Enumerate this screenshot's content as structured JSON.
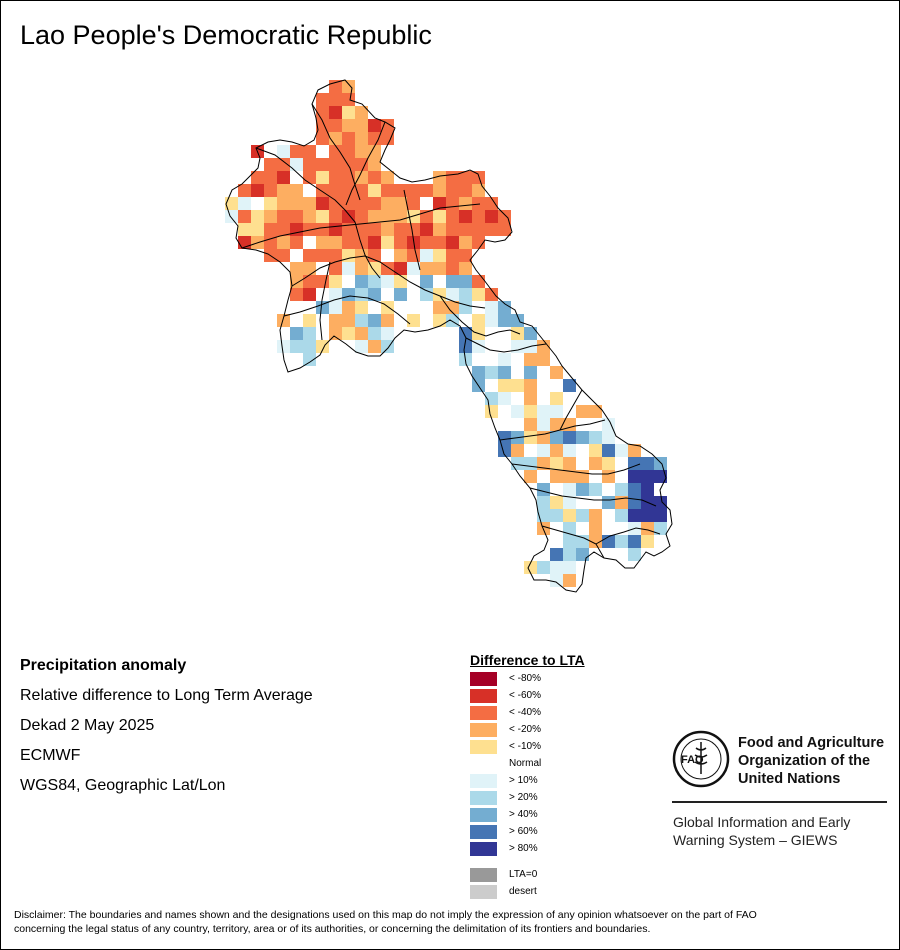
{
  "title": "Lao People's Democratic Republic",
  "info": {
    "heading": "Precipitation anomaly",
    "line1": "Relative difference to Long Term Average",
    "line2": "Dekad 2 May 2025",
    "line3": "ECMWF",
    "line4": "WGS84, Geographic Lat/Lon"
  },
  "legend": {
    "title": "Difference to LTA",
    "items": [
      {
        "label": "< -80%",
        "color": "#a50026"
      },
      {
        "label": "< -60%",
        "color": "#d73027"
      },
      {
        "label": "< -40%",
        "color": "#f46d43"
      },
      {
        "label": "< -20%",
        "color": "#fdae61"
      },
      {
        "label": "< -10%",
        "color": "#fee090"
      },
      {
        "label": "Normal",
        "color": "#ffffff"
      },
      {
        "label": "> 10%",
        "color": "#e0f3f8"
      },
      {
        "label": "> 20%",
        "color": "#abd9e9"
      },
      {
        "label": "> 40%",
        "color": "#74add1"
      },
      {
        "label": "> 60%",
        "color": "#4575b4"
      },
      {
        "label": "> 80%",
        "color": "#313695"
      }
    ],
    "extra": [
      {
        "label": "LTA=0",
        "color": "#999999"
      },
      {
        "label": "desert",
        "color": "#cccccc"
      }
    ]
  },
  "org": {
    "logo_icon": "fao-logo-icon",
    "line1": "Food and Agriculture",
    "line2": "Organization of the",
    "line3": "United Nations",
    "logo_text": "FAO",
    "logo_motto": "FIAT PANIS"
  },
  "giews": {
    "line1": "Global Information and Early",
    "line2": "Warning System – GIEWS"
  },
  "disclaimer": {
    "line1": "Disclaimer: The boundaries and names shown and the designations used on this map do not imply the expression of any opinion whatsoever on the part of FAO",
    "line2": "concerning the legal status of any country, territory, area or of its authorities, or concerning the delimitation of its frontiers and boundaries."
  }
}
